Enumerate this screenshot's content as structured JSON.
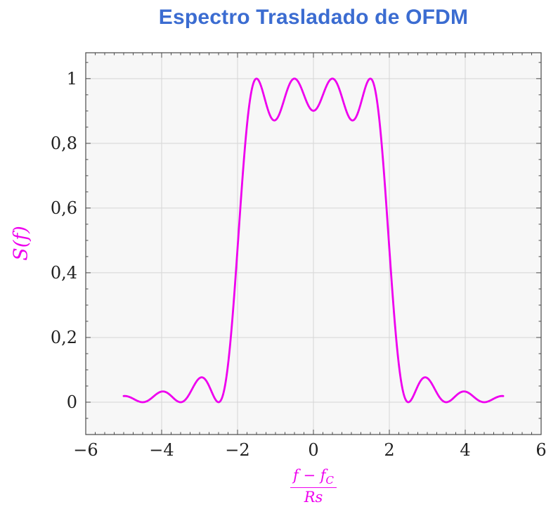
{
  "title": {
    "text": "Espectro Trasladado de OFDM",
    "color": "#3b6cd1"
  },
  "chart_data": {
    "type": "line",
    "title": "Espectro Trasladado de OFDM",
    "ylabel": "S(f)",
    "xlabel_fraction": {
      "numerator_main": "f − f",
      "numerator_sub": "C",
      "denominator": "Rs"
    },
    "xlim": [
      -6,
      6
    ],
    "ylim": [
      -0.1,
      1.08
    ],
    "x_ticks": {
      "values": [
        -6,
        -4,
        -2,
        0,
        2,
        4,
        6
      ],
      "labels": [
        "−6",
        "−4",
        "−2",
        "0",
        "2",
        "4",
        "6"
      ]
    },
    "y_ticks": {
      "values": [
        0,
        0.2,
        0.4,
        0.6,
        0.8,
        1
      ],
      "labels": [
        "0",
        "0,2",
        "0,4",
        "0,6",
        "0,8",
        "1"
      ]
    },
    "minor_tick_step_x": 0.25,
    "minor_tick_step_y": 0.05,
    "grid": true,
    "legend": null,
    "line_color": "#ee00ee",
    "plot_bg": "#f7f7f7",
    "grid_color": "#d6d6d6",
    "frame_color": "#4a4a4a",
    "model": {
      "type": "sum_sinc_squared",
      "description": "S(f) = sum over subcarriers k of sinc^2(f - k), sinc(x) = sin(pi x)/(pi x); OFDM spectrum of 4 subcarriers translated to carrier fC",
      "subcarriers": [
        -1.5,
        -0.5,
        0.5,
        1.5
      ],
      "x_range": [
        -5,
        5
      ]
    },
    "samples": {
      "x": [
        -5,
        -4.75,
        -4.5,
        -4.25,
        -4,
        -3.75,
        -3.5,
        -3.25,
        -3,
        -2.75,
        -2.5,
        -2.25,
        -2,
        -1.75,
        -1.5,
        -1.25,
        -1,
        -0.75,
        -0.5,
        -0.25,
        0,
        0.25,
        0.5,
        0.75,
        1,
        1.25,
        1.5,
        1.75,
        2,
        2.25,
        2.5,
        2.75,
        3,
        3.25,
        3.5,
        3.75,
        4,
        4.25,
        4.5,
        4.75,
        5
      ],
      "y": [
        0.019,
        0.011,
        0.0,
        0.014,
        0.033,
        0.019,
        0.0,
        0.029,
        0.075,
        0.05,
        0.0,
        0.117,
        0.474,
        0.858,
        1.0,
        0.924,
        0.871,
        0.943,
        1.0,
        0.95,
        0.9,
        0.95,
        1.0,
        0.943,
        0.871,
        0.924,
        1.0,
        0.858,
        0.474,
        0.117,
        0.0,
        0.05,
        0.075,
        0.029,
        0.0,
        0.019,
        0.033,
        0.014,
        0.0,
        0.011,
        0.019
      ]
    }
  }
}
